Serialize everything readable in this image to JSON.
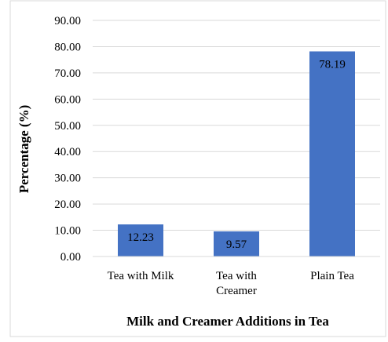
{
  "chart_data": {
    "type": "bar",
    "title": "",
    "xlabel": "Milk and Creamer Additions in Tea",
    "ylabel": "Percentage (%)",
    "categories": [
      [
        "Tea with Milk"
      ],
      [
        "Tea with",
        "Creamer"
      ],
      [
        "Plain Tea"
      ]
    ],
    "values": [
      12.23,
      9.57,
      78.19
    ],
    "data_labels": [
      "12.23",
      "9.57",
      "78.19"
    ],
    "ylim": [
      0,
      90
    ],
    "ytick_step": 10,
    "ytick_labels": [
      "0.00",
      "10.00",
      "20.00",
      "30.00",
      "40.00",
      "50.00",
      "60.00",
      "70.00",
      "80.00",
      "90.00"
    ],
    "grid": true,
    "legend": "none",
    "bar_color": "#4472c4",
    "grid_color": "#d9d9d9"
  }
}
